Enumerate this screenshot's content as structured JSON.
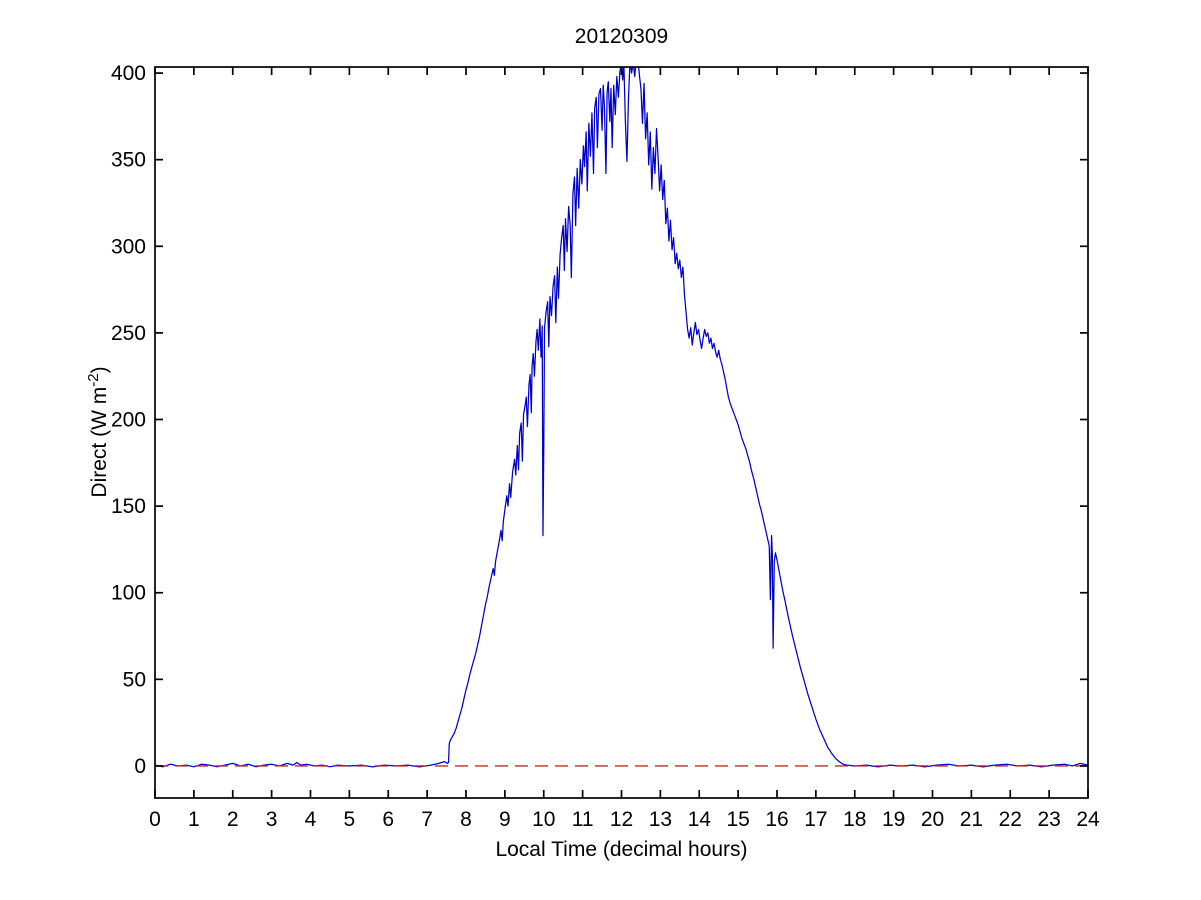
{
  "chart_data": {
    "type": "line",
    "title": "20120309",
    "xlabel": "Local Time (decimal hours)",
    "ylabel": "Direct (W m^-2)",
    "ylabel_parts": {
      "prefix": "Direct (W m",
      "superscript": "-2",
      "suffix": ")"
    },
    "xlim": [
      0,
      24
    ],
    "ylim": [
      -18.5,
      403.5
    ],
    "xticks": [
      0,
      1,
      2,
      3,
      4,
      5,
      6,
      7,
      8,
      9,
      10,
      11,
      12,
      13,
      14,
      15,
      16,
      17,
      18,
      19,
      20,
      21,
      22,
      23,
      24
    ],
    "yticks": [
      0,
      50,
      100,
      150,
      200,
      250,
      300,
      350,
      400
    ],
    "grid": false,
    "legend": null,
    "background": "#ffffff",
    "axes_color": "#000000",
    "series": [
      {
        "name": "direct_irradiance",
        "color": "#0000cc",
        "line_style": "solid",
        "points": [
          [
            0,
            0.5
          ],
          [
            0.2,
            -0.5
          ],
          [
            0.4,
            1
          ],
          [
            0.6,
            0
          ],
          [
            0.8,
            0.5
          ],
          [
            1,
            -0.5
          ],
          [
            1.2,
            1
          ],
          [
            1.4,
            0.5
          ],
          [
            1.6,
            -0.5
          ],
          [
            1.8,
            0.5
          ],
          [
            2,
            1.5
          ],
          [
            2.2,
            0
          ],
          [
            2.4,
            1
          ],
          [
            2.6,
            -0.5
          ],
          [
            2.8,
            0.5
          ],
          [
            3,
            1
          ],
          [
            3.2,
            0
          ],
          [
            3.4,
            1.5
          ],
          [
            3.55,
            0.5
          ],
          [
            3.65,
            2
          ],
          [
            3.75,
            0.5
          ],
          [
            3.9,
            1
          ],
          [
            4.1,
            0
          ],
          [
            4.3,
            0.5
          ],
          [
            4.5,
            -0.5
          ],
          [
            4.7,
            0.5
          ],
          [
            5,
            0
          ],
          [
            5.3,
            0.5
          ],
          [
            5.6,
            -0.5
          ],
          [
            5.9,
            0.5
          ],
          [
            6.2,
            0
          ],
          [
            6.5,
            0.5
          ],
          [
            6.8,
            -0.5
          ],
          [
            7.1,
            0.5
          ],
          [
            7.3,
            1.5
          ],
          [
            7.45,
            2.5
          ],
          [
            7.52,
            1.5
          ],
          [
            7.55,
            2
          ],
          [
            7.57,
            13
          ],
          [
            7.6,
            15
          ],
          [
            7.65,
            17
          ],
          [
            7.7,
            19
          ],
          [
            7.75,
            22
          ],
          [
            7.8,
            26
          ],
          [
            7.85,
            30
          ],
          [
            7.9,
            34
          ],
          [
            7.95,
            39
          ],
          [
            8,
            44
          ],
          [
            8.05,
            48
          ],
          [
            8.1,
            53
          ],
          [
            8.15,
            57
          ],
          [
            8.2,
            61
          ],
          [
            8.25,
            65
          ],
          [
            8.3,
            70
          ],
          [
            8.35,
            75
          ],
          [
            8.4,
            81
          ],
          [
            8.45,
            87
          ],
          [
            8.5,
            93
          ],
          [
            8.55,
            98
          ],
          [
            8.6,
            104
          ],
          [
            8.65,
            109
          ],
          [
            8.7,
            114
          ],
          [
            8.73,
            110
          ],
          [
            8.76,
            118
          ],
          [
            8.8,
            123
          ],
          [
            8.85,
            129
          ],
          [
            8.9,
            136
          ],
          [
            8.93,
            130
          ],
          [
            8.96,
            141
          ],
          [
            9,
            148
          ],
          [
            9.05,
            156
          ],
          [
            9.08,
            150
          ],
          [
            9.12,
            163
          ],
          [
            9.15,
            155
          ],
          [
            9.2,
            170
          ],
          [
            9.25,
            177
          ],
          [
            9.28,
            168
          ],
          [
            9.32,
            185
          ],
          [
            9.35,
            171
          ],
          [
            9.38,
            192
          ],
          [
            9.42,
            198
          ],
          [
            9.45,
            176
          ],
          [
            9.48,
            203
          ],
          [
            9.52,
            208
          ],
          [
            9.55,
            213
          ],
          [
            9.58,
            196
          ],
          [
            9.62,
            220
          ],
          [
            9.65,
            226
          ],
          [
            9.68,
            204
          ],
          [
            9.7,
            231
          ],
          [
            9.73,
            238
          ],
          [
            9.76,
            225
          ],
          [
            9.8,
            245
          ],
          [
            9.83,
            252
          ],
          [
            9.86,
            240
          ],
          [
            9.9,
            258
          ],
          [
            9.93,
            236
          ],
          [
            9.96,
            254
          ],
          [
            9.98,
            133
          ],
          [
            10,
            182
          ],
          [
            10.02,
            253
          ],
          [
            10.06,
            262
          ],
          [
            10.1,
            268
          ],
          [
            10.13,
            242
          ],
          [
            10.16,
            271
          ],
          [
            10.2,
            260
          ],
          [
            10.24,
            277
          ],
          [
            10.28,
            283
          ],
          [
            10.31,
            256
          ],
          [
            10.35,
            288
          ],
          [
            10.38,
            270
          ],
          [
            10.42,
            295
          ],
          [
            10.46,
            305
          ],
          [
            10.5,
            312
          ],
          [
            10.53,
            286
          ],
          [
            10.56,
            316
          ],
          [
            10.6,
            297
          ],
          [
            10.64,
            323
          ],
          [
            10.68,
            312
          ],
          [
            10.71,
            282
          ],
          [
            10.75,
            330
          ],
          [
            10.79,
            340
          ],
          [
            10.82,
            312
          ],
          [
            10.86,
            345
          ],
          [
            10.9,
            322
          ],
          [
            10.94,
            350
          ],
          [
            10.98,
            336
          ],
          [
            11.02,
            358
          ],
          [
            11.05,
            346
          ],
          [
            11.09,
            366
          ],
          [
            11.12,
            332
          ],
          [
            11.16,
            371
          ],
          [
            11.2,
            352
          ],
          [
            11.24,
            377
          ],
          [
            11.28,
            342
          ],
          [
            11.31,
            380
          ],
          [
            11.35,
            386
          ],
          [
            11.38,
            357
          ],
          [
            11.42,
            388
          ],
          [
            11.46,
            391
          ],
          [
            11.5,
            367
          ],
          [
            11.53,
            393
          ],
          [
            11.56,
            381
          ],
          [
            11.6,
            342
          ],
          [
            11.63,
            389
          ],
          [
            11.66,
            395
          ],
          [
            11.7,
            372
          ],
          [
            11.73,
            391
          ],
          [
            11.76,
            357
          ],
          [
            11.8,
            393
          ],
          [
            11.84,
            376
          ],
          [
            11.88,
            398
          ],
          [
            11.92,
            386
          ],
          [
            11.96,
            401
          ],
          [
            12,
            406
          ],
          [
            12.03,
            396
          ],
          [
            12.06,
            406
          ],
          [
            12.1,
            372
          ],
          [
            12.14,
            349
          ],
          [
            12.18,
            386
          ],
          [
            12.22,
            407
          ],
          [
            12.26,
            400
          ],
          [
            12.3,
            406
          ],
          [
            12.34,
            398
          ],
          [
            12.38,
            408
          ],
          [
            12.42,
            408
          ],
          [
            12.46,
            399
          ],
          [
            12.5,
            391
          ],
          [
            12.54,
            371
          ],
          [
            12.58,
            394
          ],
          [
            12.62,
            362
          ],
          [
            12.66,
            377
          ],
          [
            12.7,
            347
          ],
          [
            12.74,
            366
          ],
          [
            12.78,
            333
          ],
          [
            12.82,
            357
          ],
          [
            12.86,
            342
          ],
          [
            12.9,
            368
          ],
          [
            12.94,
            352
          ],
          [
            12.98,
            332
          ],
          [
            13.02,
            347
          ],
          [
            13.06,
            327
          ],
          [
            13.1,
            338
          ],
          [
            13.14,
            313
          ],
          [
            13.18,
            322
          ],
          [
            13.22,
            303
          ],
          [
            13.26,
            315
          ],
          [
            13.3,
            298
          ],
          [
            13.34,
            305
          ],
          [
            13.38,
            290
          ],
          [
            13.42,
            296
          ],
          [
            13.46,
            287
          ],
          [
            13.5,
            292
          ],
          [
            13.54,
            282
          ],
          [
            13.58,
            288
          ],
          [
            13.62,
            272
          ],
          [
            13.66,
            262
          ],
          [
            13.7,
            252
          ],
          [
            13.74,
            247
          ],
          [
            13.78,
            253
          ],
          [
            13.82,
            243
          ],
          [
            13.86,
            250
          ],
          [
            13.9,
            256
          ],
          [
            13.94,
            249
          ],
          [
            13.98,
            252
          ],
          [
            14.02,
            246
          ],
          [
            14.06,
            241
          ],
          [
            14.1,
            247
          ],
          [
            14.14,
            252
          ],
          [
            14.18,
            248
          ],
          [
            14.22,
            250
          ],
          [
            14.26,
            244
          ],
          [
            14.3,
            247
          ],
          [
            14.34,
            241
          ],
          [
            14.38,
            244
          ],
          [
            14.42,
            239
          ],
          [
            14.46,
            236
          ],
          [
            14.5,
            240
          ],
          [
            14.54,
            235
          ],
          [
            14.58,
            232
          ],
          [
            14.62,
            228
          ],
          [
            14.66,
            224
          ],
          [
            14.7,
            219
          ],
          [
            14.75,
            213
          ],
          [
            14.8,
            209
          ],
          [
            14.85,
            206
          ],
          [
            14.9,
            203
          ],
          [
            14.95,
            200
          ],
          [
            15,
            197
          ],
          [
            15.05,
            193
          ],
          [
            15.1,
            189
          ],
          [
            15.15,
            186
          ],
          [
            15.2,
            183
          ],
          [
            15.25,
            179
          ],
          [
            15.3,
            175
          ],
          [
            15.35,
            170
          ],
          [
            15.4,
            166
          ],
          [
            15.45,
            161
          ],
          [
            15.5,
            156
          ],
          [
            15.55,
            151
          ],
          [
            15.6,
            147
          ],
          [
            15.65,
            142
          ],
          [
            15.7,
            137
          ],
          [
            15.75,
            132
          ],
          [
            15.8,
            127
          ],
          [
            15.83,
            96
          ],
          [
            15.86,
            133
          ],
          [
            15.88,
            122
          ],
          [
            15.9,
            68
          ],
          [
            15.93,
            118
          ],
          [
            15.96,
            123
          ],
          [
            16,
            119
          ],
          [
            16.05,
            113
          ],
          [
            16.1,
            107
          ],
          [
            16.15,
            101
          ],
          [
            16.2,
            96
          ],
          [
            16.3,
            85
          ],
          [
            16.4,
            75
          ],
          [
            16.5,
            66
          ],
          [
            16.6,
            57
          ],
          [
            16.7,
            49
          ],
          [
            16.8,
            41
          ],
          [
            16.9,
            34
          ],
          [
            17,
            27
          ],
          [
            17.1,
            21
          ],
          [
            17.2,
            16
          ],
          [
            17.3,
            11
          ],
          [
            17.4,
            7.5
          ],
          [
            17.5,
            4.5
          ],
          [
            17.6,
            2.5
          ],
          [
            17.7,
            1
          ],
          [
            17.8,
            0.5
          ],
          [
            18,
            0
          ],
          [
            18.3,
            0.5
          ],
          [
            18.6,
            -0.5
          ],
          [
            18.9,
            0.5
          ],
          [
            19.2,
            0
          ],
          [
            19.5,
            0.5
          ],
          [
            19.8,
            -0.5
          ],
          [
            20.1,
            0.5
          ],
          [
            20.4,
            1
          ],
          [
            20.7,
            0
          ],
          [
            21,
            0.5
          ],
          [
            21.3,
            -0.5
          ],
          [
            21.6,
            0.5
          ],
          [
            21.9,
            1
          ],
          [
            22.2,
            0
          ],
          [
            22.5,
            0.5
          ],
          [
            22.8,
            -0.5
          ],
          [
            23.1,
            0.5
          ],
          [
            23.4,
            1
          ],
          [
            23.6,
            0
          ],
          [
            23.8,
            1.5
          ],
          [
            24,
            0.5
          ]
        ]
      },
      {
        "name": "zero_reference_line",
        "color": "#bf2b20",
        "line_style": "dashed",
        "points": [
          [
            0,
            0
          ],
          [
            24,
            0
          ]
        ]
      }
    ]
  }
}
